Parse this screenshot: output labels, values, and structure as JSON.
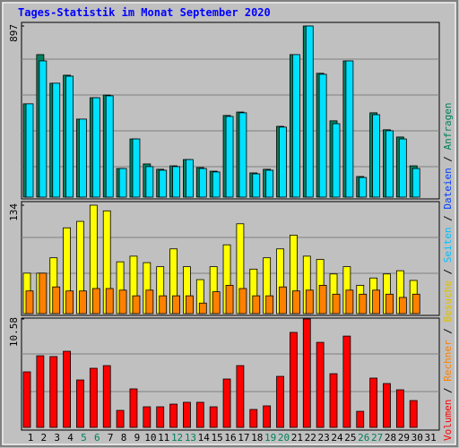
{
  "chart_data": [
    {
      "type": "bar",
      "title": "Tages-Statistik im Monat September 2020",
      "ylim": [
        0,
        897
      ],
      "yticks": [
        897
      ],
      "series": [
        {
          "color": "#008060",
          "values": [
            489,
            747,
            597,
            639,
            409,
            521,
            535,
            150,
            305,
            174,
            146,
            164,
            197,
            155,
            136,
            428,
            446,
            127,
            146,
            371,
            747,
            897,
            649,
            400,
            714,
            108,
            442,
            353,
            315,
            164,
            null
          ]
        },
        {
          "color": "#00e0ff",
          "values": [
            489,
            714,
            597,
            634,
            409,
            521,
            531,
            150,
            305,
            160,
            141,
            160,
            197,
            150,
            132,
            423,
            442,
            122,
            141,
            367,
            747,
            897,
            644,
            385,
            714,
            103,
            432,
            348,
            305,
            150,
            null
          ]
        }
      ]
    },
    {
      "type": "bar",
      "ylim": [
        0,
        134
      ],
      "yticks": [
        134
      ],
      "series": [
        {
          "color": "#ffff00",
          "values": [
            50,
            50,
            69,
            106,
            114,
            134,
            127,
            64,
            71,
            63,
            58,
            80,
            58,
            42,
            58,
            85,
            111,
            55,
            69,
            80,
            97,
            71,
            67,
            49,
            58,
            35,
            44,
            49,
            53,
            41,
            null
          ]
        },
        {
          "color": "#ff8000",
          "values": [
            28,
            50,
            33,
            28,
            28,
            31,
            31,
            29,
            22,
            29,
            22,
            22,
            22,
            13,
            27,
            35,
            31,
            22,
            22,
            33,
            28,
            29,
            35,
            24,
            29,
            24,
            29,
            24,
            20,
            24,
            null
          ]
        }
      ]
    },
    {
      "type": "bar",
      "ylim": [
        0,
        10.58
      ],
      "yticks": [
        10.58
      ],
      "categories": [
        "1",
        "2",
        "3",
        "4",
        "5",
        "6",
        "7",
        "8",
        "9",
        "10",
        "11",
        "12",
        "13",
        "14",
        "15",
        "16",
        "17",
        "18",
        "19",
        "20",
        "21",
        "22",
        "23",
        "24",
        "25",
        "26",
        "27",
        "28",
        "29",
        "30",
        "31"
      ],
      "category_color": "#000000",
      "weekend_color": "#00805c",
      "weekend_indices": [
        4,
        5,
        11,
        12,
        18,
        19,
        25,
        26
      ],
      "series": [
        {
          "color": "#ff0000",
          "values": [
            5.42,
            6.99,
            6.91,
            7.43,
            4.63,
            5.77,
            6.03,
            1.66,
            3.76,
            2.01,
            2.01,
            2.27,
            2.45,
            2.45,
            2.01,
            4.72,
            6.03,
            1.75,
            2.1,
            4.98,
            9.27,
            10.58,
            8.3,
            5.24,
            8.91,
            1.57,
            4.81,
            4.28,
            3.67,
            2.62,
            null
          ]
        }
      ]
    }
  ],
  "legend": [
    {
      "label": "Volumen",
      "color": "#ff0000"
    },
    {
      "label": "Rechner",
      "color": "#ff8000"
    },
    {
      "label": "Besuche",
      "color": "#e0c000"
    },
    {
      "label": "Seiten",
      "color": "#00c0ff"
    },
    {
      "label": "Dateien",
      "color": "#0040ff"
    },
    {
      "label": "Anfragen",
      "color": "#00805c"
    }
  ],
  "legend_separator": " / "
}
